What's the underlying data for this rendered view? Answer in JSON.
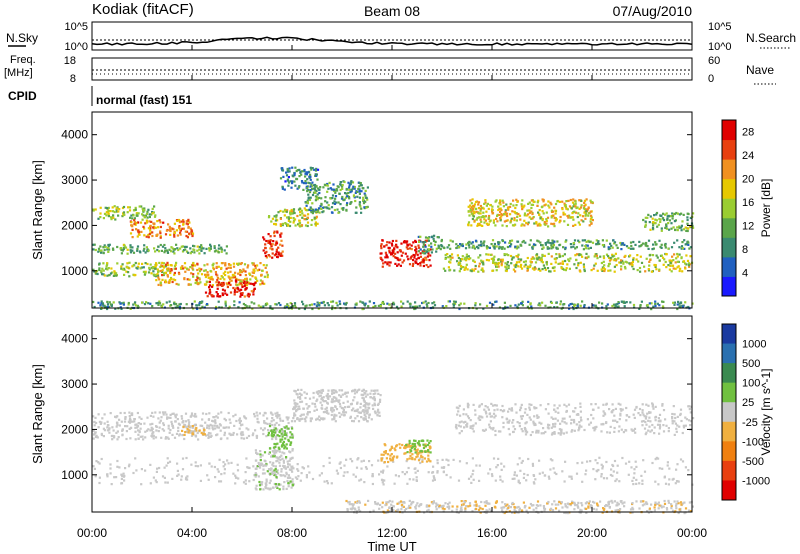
{
  "header": {
    "station": "Kodiak (fitACF)",
    "beam": "Beam 08",
    "date": "07/Aug/2010"
  },
  "noise_panel": {
    "left_label": "N.Sky",
    "right_label": "N.Search",
    "left_ticks": [
      "10^5",
      "10^0"
    ],
    "right_ticks": [
      "10^5",
      "10^0"
    ]
  },
  "freq_panel": {
    "left_label_line1": "Freq.",
    "left_label_line2": "[MHz]",
    "left_ticks": [
      "18",
      "8"
    ],
    "right_label": "Nave",
    "right_ticks": [
      "60",
      "0"
    ]
  },
  "cpid_panel": {
    "label": "CPID",
    "value": "normal (fast) 151"
  },
  "x_axis": {
    "label": "Time UT",
    "ticks": [
      "00:00",
      "04:00",
      "08:00",
      "12:00",
      "16:00",
      "20:00",
      "00:00"
    ]
  },
  "chart_data": [
    {
      "type": "heatmap",
      "title": "",
      "xlabel": "Time UT",
      "ylabel": "Slant Range [km]",
      "xlim": [
        0,
        24
      ],
      "ylim": [
        180,
        4500
      ],
      "yticks": [
        "1000",
        "2000",
        "3000",
        "4000"
      ],
      "colorbar": {
        "label": "Power [dB]",
        "ticks": [
          "4",
          "8",
          "12",
          "16",
          "20",
          "24",
          "28"
        ],
        "range": [
          0,
          30
        ],
        "colors": [
          "#1a1aff",
          "#2060c0",
          "#3a8a70",
          "#5aa54a",
          "#9acd32",
          "#e6c800",
          "#f09020",
          "#e84010",
          "#e00000"
        ]
      },
      "regions": [
        {
          "t": [
            0.0,
            2.5
          ],
          "r": [
            2150,
            2450
          ],
          "power": 14
        },
        {
          "t": [
            1.5,
            4.0
          ],
          "r": [
            1750,
            2150
          ],
          "power": 22
        },
        {
          "t": [
            0.0,
            5.5
          ],
          "r": [
            1400,
            1600
          ],
          "power": 12
        },
        {
          "t": [
            0.0,
            3.0
          ],
          "r": [
            900,
            1200
          ],
          "power": 14
        },
        {
          "t": [
            2.5,
            7.0
          ],
          "r": [
            700,
            1200
          ],
          "power": 20
        },
        {
          "t": [
            4.5,
            6.5
          ],
          "r": [
            450,
            800
          ],
          "power": 28
        },
        {
          "t": [
            6.8,
            7.6
          ],
          "r": [
            1300,
            1900
          ],
          "power": 26
        },
        {
          "t": [
            7.0,
            9.0
          ],
          "r": [
            2000,
            2400
          ],
          "power": 16
        },
        {
          "t": [
            8.5,
            11.0
          ],
          "r": [
            2300,
            3000
          ],
          "power": 10
        },
        {
          "t": [
            7.5,
            9.0
          ],
          "r": [
            2800,
            3300
          ],
          "power": 8
        },
        {
          "t": [
            11.5,
            13.5
          ],
          "r": [
            1100,
            1700
          ],
          "power": 28
        },
        {
          "t": [
            13.0,
            14.0
          ],
          "r": [
            1400,
            1800
          ],
          "power": 10
        },
        {
          "t": [
            15.0,
            20.0
          ],
          "r": [
            2000,
            2600
          ],
          "power": 18
        },
        {
          "t": [
            14.0,
            24.0
          ],
          "r": [
            1000,
            1400
          ],
          "power": 16
        },
        {
          "t": [
            14.0,
            24.0
          ],
          "r": [
            1500,
            1700
          ],
          "power": 10
        },
        {
          "t": [
            22.0,
            24.0
          ],
          "r": [
            1900,
            2300
          ],
          "power": 12
        },
        {
          "t": [
            0.0,
            24.0
          ],
          "r": [
            180,
            350
          ],
          "power": 10
        }
      ]
    },
    {
      "type": "heatmap",
      "title": "",
      "xlabel": "Time UT",
      "ylabel": "Slant Range [km]",
      "xlim": [
        0,
        24
      ],
      "ylim": [
        180,
        4500
      ],
      "yticks": [
        "1000",
        "2000",
        "3000",
        "4000"
      ],
      "colorbar": {
        "label": "Velocity [m s^-1]",
        "ticks": [
          "1000",
          "500",
          "100",
          "25",
          "-25",
          "-100",
          "-500",
          "-1000"
        ],
        "range": [
          -1000,
          1000
        ],
        "colors": [
          "#1a3aa0",
          "#2a70b0",
          "#3a8a50",
          "#70c040",
          "#c8c8c8",
          "#f0b040",
          "#f08010",
          "#e84010",
          "#e00000"
        ]
      },
      "regions": [
        {
          "t": [
            0.0,
            8.0
          ],
          "r": [
            1800,
            2400
          ],
          "velocity": 0
        },
        {
          "t": [
            0.0,
            24.0
          ],
          "r": [
            800,
            1400
          ],
          "velocity": 0
        },
        {
          "t": [
            3.5,
            4.5
          ],
          "r": [
            1900,
            2100
          ],
          "velocity": -150
        },
        {
          "t": [
            6.5,
            8.0
          ],
          "r": [
            700,
            1600
          ],
          "velocity": 80
        },
        {
          "t": [
            7.0,
            8.0
          ],
          "r": [
            1600,
            2100
          ],
          "velocity": 200
        },
        {
          "t": [
            8.0,
            11.5
          ],
          "r": [
            2200,
            2900
          ],
          "velocity": 0
        },
        {
          "t": [
            11.5,
            13.5
          ],
          "r": [
            1300,
            1700
          ],
          "velocity": -200
        },
        {
          "t": [
            12.5,
            13.5
          ],
          "r": [
            1500,
            1800
          ],
          "velocity": 200
        },
        {
          "t": [
            14.5,
            24.0
          ],
          "r": [
            1900,
            2600
          ],
          "velocity": 0
        },
        {
          "t": [
            10.0,
            24.0
          ],
          "r": [
            180,
            450
          ],
          "velocity": -80
        }
      ]
    }
  ]
}
